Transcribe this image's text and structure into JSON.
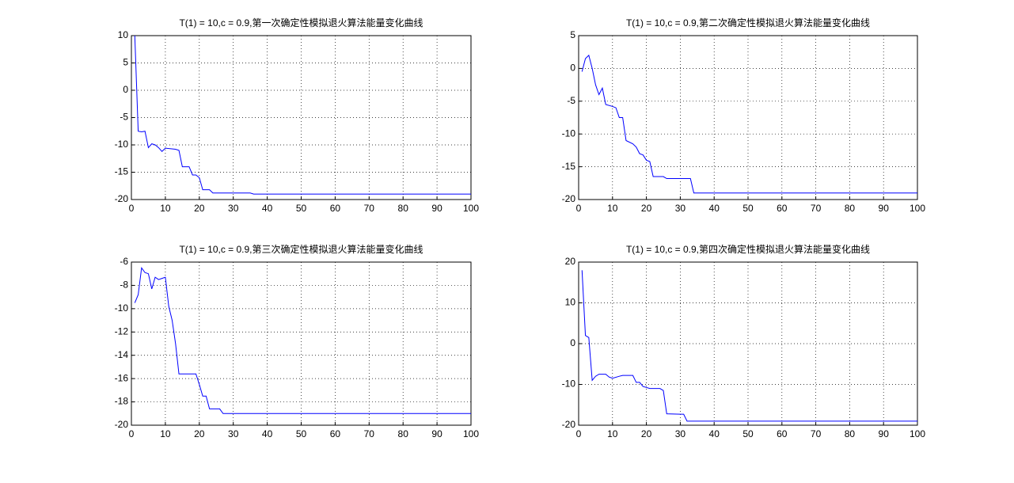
{
  "chart_data": [
    {
      "type": "line",
      "title": "T(1) = 10,c = 0.9,第一次确定性模拟退火算法能量变化曲线",
      "x": [
        1,
        2,
        3,
        4,
        5,
        6,
        7,
        8,
        9,
        10,
        13,
        14,
        15,
        17,
        18,
        19,
        20,
        21,
        23,
        24,
        35,
        36,
        100
      ],
      "series": [
        {
          "color": "#0000ff",
          "values": [
            10,
            -7.5,
            -7.6,
            -7.5,
            -10.5,
            -9.8,
            -10,
            -10.5,
            -11.2,
            -10.6,
            -10.8,
            -11,
            -14,
            -14,
            -15.5,
            -15.5,
            -16,
            -18.2,
            -18.2,
            -18.8,
            -18.8,
            -19,
            -19
          ]
        }
      ],
      "xlim": [
        0,
        100
      ],
      "xticks": [
        0,
        10,
        20,
        30,
        40,
        50,
        60,
        70,
        80,
        90,
        100
      ],
      "ylim": [
        -20,
        10
      ],
      "yticks": [
        -20,
        -15,
        -10,
        -5,
        0,
        5,
        10
      ],
      "grid": true
    },
    {
      "type": "line",
      "title": "T(1) = 10,c = 0.9,第二次确定性模拟退火算法能量变化曲线",
      "x": [
        1,
        2,
        3,
        4,
        5,
        6,
        7,
        8,
        10,
        11,
        12,
        13,
        14,
        16,
        17,
        18,
        19,
        20,
        21,
        22,
        25,
        26,
        33,
        34,
        100
      ],
      "series": [
        {
          "color": "#0000ff",
          "values": [
            -0.5,
            1.5,
            2,
            0,
            -2.5,
            -4,
            -3,
            -5.5,
            -5.8,
            -6,
            -7.5,
            -7.5,
            -11,
            -11.5,
            -12,
            -13,
            -13.2,
            -14,
            -14.2,
            -16.5,
            -16.5,
            -16.8,
            -16.8,
            -19,
            -19
          ]
        }
      ],
      "xlim": [
        0,
        100
      ],
      "xticks": [
        0,
        10,
        20,
        30,
        40,
        50,
        60,
        70,
        80,
        90,
        100
      ],
      "ylim": [
        -20,
        5
      ],
      "yticks": [
        -20,
        -15,
        -10,
        -5,
        0,
        5
      ],
      "grid": true
    },
    {
      "type": "line",
      "title": "T(1) = 10,c = 0.9,第三次确定性模拟退火算法能量变化曲线",
      "x": [
        1,
        2,
        3,
        4,
        5,
        6,
        7,
        8,
        9,
        10,
        11,
        12,
        13,
        14,
        19,
        20,
        21,
        22,
        23,
        26,
        27,
        100
      ],
      "series": [
        {
          "color": "#0000ff",
          "values": [
            -9.5,
            -8.8,
            -6.5,
            -6.9,
            -7,
            -8.3,
            -7.3,
            -7.5,
            -7.4,
            -7.3,
            -9.8,
            -11,
            -13,
            -15.6,
            -15.6,
            -16.5,
            -17.5,
            -17.5,
            -18.6,
            -18.6,
            -19,
            -19
          ]
        }
      ],
      "xlim": [
        0,
        100
      ],
      "xticks": [
        0,
        10,
        20,
        30,
        40,
        50,
        60,
        70,
        80,
        90,
        100
      ],
      "ylim": [
        -20,
        -6
      ],
      "yticks": [
        -20,
        -18,
        -16,
        -14,
        -12,
        -10,
        -8,
        -6
      ],
      "grid": true
    },
    {
      "type": "line",
      "title": "T(1) = 10,c = 0.9,第四次确定性模拟退火算法能量变化曲线",
      "x": [
        1,
        2,
        3,
        4,
        5,
        6,
        8,
        9,
        10,
        12,
        13,
        16,
        17,
        18,
        19,
        21,
        24,
        25,
        26,
        30,
        31,
        32,
        100
      ],
      "series": [
        {
          "color": "#0000ff",
          "values": [
            18,
            2,
            1.5,
            -9,
            -8,
            -7.5,
            -7.5,
            -8.2,
            -8.5,
            -8,
            -7.8,
            -7.8,
            -9.5,
            -9.5,
            -10.5,
            -11,
            -11,
            -11.5,
            -17.2,
            -17.3,
            -17.3,
            -19,
            -19
          ]
        }
      ],
      "xlim": [
        0,
        100
      ],
      "xticks": [
        0,
        10,
        20,
        30,
        40,
        50,
        60,
        70,
        80,
        90,
        100
      ],
      "ylim": [
        -20,
        20
      ],
      "yticks": [
        -20,
        -10,
        0,
        10,
        20
      ],
      "grid": true
    }
  ]
}
